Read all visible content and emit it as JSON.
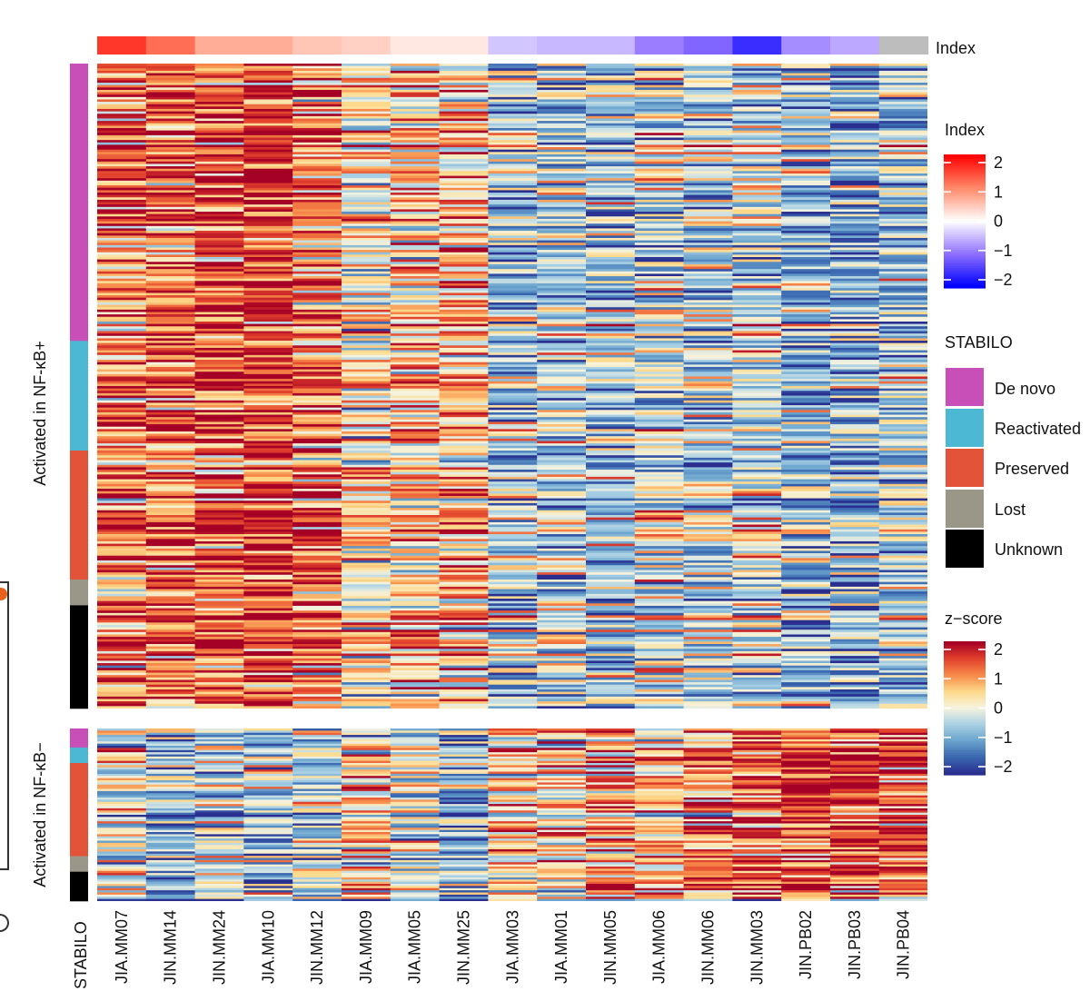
{
  "chart_data": {
    "type": "heatmap",
    "title": "",
    "value_label": "z-score",
    "columns": [
      {
        "name": "JIA.MM07",
        "group": "JIA",
        "index": 1.6
      },
      {
        "name": "JIN.MM14",
        "group": "JIN.MM",
        "index": 1.2
      },
      {
        "name": "JIN.MM24",
        "group": "JIN.MM",
        "index": 0.7
      },
      {
        "name": "JIA.MM10",
        "group": "JIA",
        "index": 0.7
      },
      {
        "name": "JIN.MM12",
        "group": "JIN.MM",
        "index": 0.5
      },
      {
        "name": "JIA.MM09",
        "group": "JIA",
        "index": 0.4
      },
      {
        "name": "JIA.MM05",
        "group": "JIA",
        "index": 0.2
      },
      {
        "name": "JIN.MM25",
        "group": "JIN.MM",
        "index": 0.2
      },
      {
        "name": "JIA.MM03",
        "group": "JIA",
        "index": -0.4
      },
      {
        "name": "JIA.MM01",
        "group": "JIA",
        "index": -0.5
      },
      {
        "name": "JIN.MM05",
        "group": "JIN.MM",
        "index": -0.5
      },
      {
        "name": "JIA.MM06",
        "group": "JIA",
        "index": -0.9
      },
      {
        "name": "JIN.MM06",
        "group": "JIN.MM",
        "index": -1.1
      },
      {
        "name": "JIN.MM03",
        "group": "JIN.MM",
        "index": -1.6
      },
      {
        "name": "JIN.PB02",
        "group": "JIN.PB",
        "index": -0.8
      },
      {
        "name": "JIN.PB03",
        "group": "JIN.PB",
        "index": -0.6
      },
      {
        "name": "JIN.PB04",
        "group": "JIN.PB",
        "index": null
      }
    ],
    "label_colors": {
      "JIA": "#7a4a17",
      "JIN.MM": "#1a1a1a",
      "JIN.PB": "#34348a"
    },
    "panels": [
      {
        "title": "Activated in NF-κB+",
        "column_means": [
          1.1,
          1.3,
          1.4,
          1.5,
          1.1,
          0.2,
          0.5,
          0.6,
          -0.5,
          -0.4,
          -0.5,
          -0.2,
          -0.3,
          -0.2,
          -0.7,
          -0.8,
          -0.5
        ],
        "stabilo_segments": [
          {
            "category": "De novo",
            "fraction": 0.43
          },
          {
            "category": "Reactivated",
            "fraction": 0.17
          },
          {
            "category": "Preserved",
            "fraction": 0.2
          },
          {
            "category": "Lost",
            "fraction": 0.04
          },
          {
            "category": "Unknown",
            "fraction": 0.16
          }
        ]
      },
      {
        "title": "Activated in NF-κB−",
        "column_means": [
          -0.3,
          -0.9,
          -0.5,
          -0.6,
          -0.4,
          0.1,
          -0.2,
          -0.9,
          0.4,
          0.2,
          0.8,
          0.4,
          0.9,
          1.0,
          1.3,
          1.3,
          1.2
        ],
        "stabilo_segments": [
          {
            "category": "De novo",
            "fraction": 0.11
          },
          {
            "category": "Reactivated",
            "fraction": 0.09
          },
          {
            "category": "Preserved",
            "fraction": 0.54
          },
          {
            "category": "Lost",
            "fraction": 0.09
          },
          {
            "category": "Unknown",
            "fraction": 0.17
          }
        ]
      }
    ],
    "index_track_label": "Index",
    "stabilo_axis_label": "STABILO",
    "legends": {
      "index": {
        "title": "Index",
        "range": [
          -2,
          2
        ],
        "ticks": [
          "2",
          "1",
          "0",
          "−1",
          "−2"
        ],
        "colors": [
          "#ff0000",
          "#ff8a6a",
          "#ffffff",
          "#8f70ff",
          "#0000ff"
        ]
      },
      "stabilo": {
        "title": "STABILO",
        "items": [
          {
            "label": "De novo",
            "color": "#c84fb8"
          },
          {
            "label": "Reactivated",
            "color": "#4db8d4"
          },
          {
            "label": "Preserved",
            "color": "#e2533a"
          },
          {
            "label": "Lost",
            "color": "#9a9788"
          },
          {
            "label": "Unknown",
            "color": "#000000"
          }
        ]
      },
      "zscore": {
        "title": "z−score",
        "range": [
          -2,
          2
        ],
        "ticks": [
          "2",
          "1",
          "0",
          "−1",
          "−2"
        ],
        "colors": [
          "#a50026",
          "#e2412c",
          "#f78a4a",
          "#fdd98a",
          "#f5f3df",
          "#a9d0e4",
          "#6aa3cd",
          "#3a67b0",
          "#2a2f8f"
        ]
      }
    },
    "missing_index_color": "#bdbdbd"
  }
}
